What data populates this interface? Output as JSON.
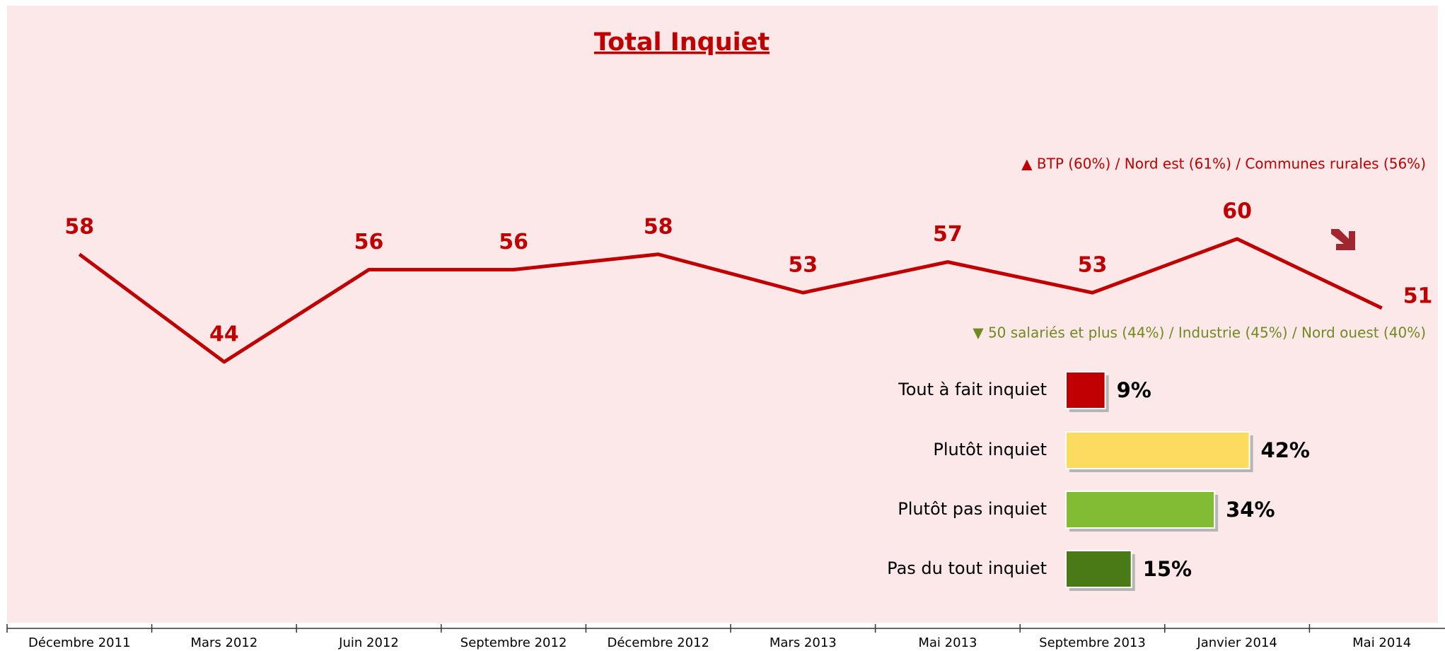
{
  "chart_data": [
    {
      "type": "line",
      "title": "Total Inquiet",
      "categories": [
        "Décembre 2011",
        "Mars 2012",
        "Juin 2012",
        "Septembre 2012",
        "Décembre 2012",
        "Mars 2013",
        "Mai 2013",
        "Septembre 2013",
        "Janvier 2014",
        "Mai 2014"
      ],
      "values": [
        58,
        44,
        56,
        56,
        58,
        53,
        57,
        53,
        60,
        51
      ],
      "color": "#c00000",
      "annotations": [
        "▲ BTP (60%)  /  Nord est (61%)  /  Communes rurales (56%)",
        "▼ 50 salariés et plus (44%) / Industrie (45%) / Nord ouest (40%)"
      ],
      "annotation_colors": [
        "#c00000",
        "#6f8a1f"
      ]
    },
    {
      "type": "hbar",
      "categories": [
        "Tout à fait inquiet",
        "Plutôt inquiet",
        "Plutôt pas inquiet",
        "Pas du tout inquiet"
      ],
      "values": [
        9,
        42,
        34,
        15
      ],
      "value_labels": [
        "9%",
        "42%",
        "34%",
        "15%"
      ],
      "colors": [
        "#c00000",
        "#fddb5e",
        "#82bc35",
        "#4a7a16"
      ]
    }
  ]
}
